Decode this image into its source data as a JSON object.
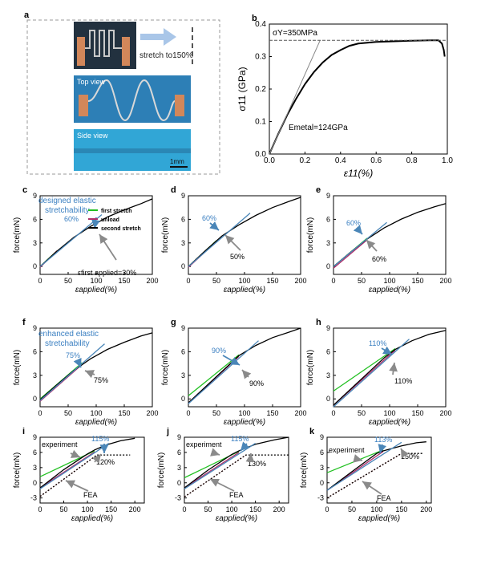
{
  "panel_a": {
    "label": "a",
    "stretch_text": "stretch to150%",
    "top_view": "Top view",
    "side_view": "Side view",
    "scale_bar": "1mm"
  },
  "chart_data": [
    {
      "id": "b",
      "panel": "b",
      "type": "line",
      "xlabel": "ε11(%)",
      "ylabel": "σ11 (GPa)",
      "xlim": [
        0,
        1.0
      ],
      "ylim": [
        0,
        0.4
      ],
      "xticks": [
        "0.0",
        "0.2",
        "0.4",
        "0.6",
        "0.8",
        "1.0"
      ],
      "yticks": [
        "0.0",
        "0.1",
        "0.2",
        "0.3",
        "0.4"
      ],
      "annotations": [
        "σY=350MPa",
        "Emetal=124GPa"
      ],
      "series": [
        {
          "color": "#000000",
          "width": 2,
          "x": [
            0,
            0.05,
            0.1,
            0.15,
            0.2,
            0.25,
            0.3,
            0.35,
            0.4,
            0.45,
            0.5,
            0.6,
            0.7,
            0.8,
            0.9,
            0.95,
            0.97,
            0.98,
            0.985
          ],
          "y": [
            0,
            0.062,
            0.12,
            0.17,
            0.215,
            0.252,
            0.282,
            0.305,
            0.32,
            0.333,
            0.34,
            0.345,
            0.347,
            0.349,
            0.35,
            0.35,
            0.34,
            0.32,
            0.3
          ]
        },
        {
          "color": "#888888",
          "width": 1,
          "x": [
            0,
            0.285
          ],
          "y": [
            0,
            0.35
          ]
        },
        {
          "color": "#555555",
          "width": 1,
          "dash": "4,2",
          "x": [
            0,
            0.99
          ],
          "y": [
            0.35,
            0.35
          ]
        }
      ]
    },
    {
      "id": "c",
      "panel": "c",
      "type": "line",
      "xlabel": "εapplied(%)",
      "ylabel": "force(mN)",
      "xlim": [
        0,
        200
      ],
      "ylim": [
        -1,
        9
      ],
      "xticks": [
        "0",
        "50",
        "100",
        "150",
        "200"
      ],
      "yticks": [
        "0",
        "3",
        "6",
        "9"
      ],
      "annotations": [
        "designed elastic",
        "stretchability",
        "60%",
        "εfirst applied=30%"
      ],
      "legend": [
        "first stretch",
        "unload",
        "second stretch"
      ],
      "series": [
        {
          "name": "first stretch",
          "color": "#22c022",
          "x": [
            0,
            30
          ],
          "y": [
            0,
            2.0
          ]
        },
        {
          "name": "unload",
          "color": "#b0306a",
          "x": [
            0,
            30
          ],
          "y": [
            -0.1,
            2.0
          ]
        },
        {
          "name": "second stretch",
          "color": "#000000",
          "x": [
            0,
            30,
            60,
            90,
            120,
            150,
            180,
            200
          ],
          "y": [
            0,
            1.95,
            3.7,
            5.1,
            6.3,
            7.2,
            8.0,
            8.6
          ]
        },
        {
          "color": "#4a86b8",
          "x": [
            0,
            110
          ],
          "y": [
            0,
            6.6
          ]
        }
      ]
    },
    {
      "id": "d",
      "panel": "d",
      "type": "line",
      "xlabel": "εapplied(%)",
      "ylabel": "force(mN)",
      "xlim": [
        0,
        200
      ],
      "ylim": [
        -1,
        9
      ],
      "xticks": [
        "0",
        "50",
        "100",
        "150",
        "200"
      ],
      "yticks": [
        "0",
        "3",
        "6",
        "9"
      ],
      "annotations": [
        "60%",
        "50%"
      ],
      "series": [
        {
          "name": "first stretch",
          "color": "#22c022",
          "x": [
            0,
            50
          ],
          "y": [
            0,
            3.3
          ]
        },
        {
          "name": "unload",
          "color": "#b0306a",
          "x": [
            0,
            50
          ],
          "y": [
            -0.1,
            3.2
          ]
        },
        {
          "name": "second stretch",
          "color": "#000000",
          "x": [
            0,
            30,
            60,
            90,
            120,
            150,
            180,
            200
          ],
          "y": [
            0,
            2.0,
            3.9,
            5.3,
            6.5,
            7.5,
            8.3,
            8.8
          ]
        },
        {
          "color": "#4a86b8",
          "x": [
            0,
            110
          ],
          "y": [
            0,
            6.8
          ]
        }
      ]
    },
    {
      "id": "e",
      "panel": "e",
      "type": "line",
      "xlabel": "εapplied(%)",
      "ylabel": "force(mN)",
      "xlim": [
        0,
        200
      ],
      "ylim": [
        -1,
        9
      ],
      "xticks": [
        "0",
        "50",
        "100",
        "150",
        "200"
      ],
      "yticks": [
        "0",
        "3",
        "6",
        "9"
      ],
      "annotations": [
        "60%",
        "60%"
      ],
      "series": [
        {
          "name": "first stretch",
          "color": "#22c022",
          "x": [
            0,
            60
          ],
          "y": [
            0,
            3.6
          ]
        },
        {
          "name": "unload",
          "color": "#b0306a",
          "x": [
            0,
            60
          ],
          "y": [
            -0.2,
            3.4
          ]
        },
        {
          "name": "second stretch",
          "color": "#000000",
          "x": [
            0,
            30,
            60,
            90,
            120,
            150,
            180,
            200
          ],
          "y": [
            0,
            1.8,
            3.5,
            4.9,
            6.0,
            6.9,
            7.6,
            8.0
          ]
        },
        {
          "color": "#4a86b8",
          "x": [
            0,
            95
          ],
          "y": [
            0,
            5.6
          ]
        }
      ]
    },
    {
      "id": "f",
      "panel": "f",
      "type": "line",
      "xlabel": "εapplied(%)",
      "ylabel": "force(mN)",
      "xlim": [
        0,
        200
      ],
      "ylim": [
        -1,
        9
      ],
      "xticks": [
        "0",
        "50",
        "100",
        "150",
        "200"
      ],
      "yticks": [
        "0",
        "3",
        "6",
        "9"
      ],
      "annotations": [
        "enhanced elastic",
        "stretchability",
        "75%",
        "75%"
      ],
      "series": [
        {
          "name": "first stretch",
          "color": "#22c022",
          "x": [
            0,
            75
          ],
          "y": [
            0,
            4.6
          ]
        },
        {
          "name": "unload",
          "color": "#b0306a",
          "x": [
            0,
            75
          ],
          "y": [
            -0.3,
            4.4
          ]
        },
        {
          "name": "second stretch",
          "color": "#000000",
          "x": [
            0,
            30,
            60,
            90,
            120,
            150,
            180,
            200
          ],
          "y": [
            -0.1,
            1.8,
            3.6,
            5.1,
            6.3,
            7.2,
            8.0,
            8.4
          ]
        },
        {
          "color": "#4a86b8",
          "x": [
            0,
            115
          ],
          "y": [
            -0.2,
            7.0
          ]
        }
      ]
    },
    {
      "id": "g",
      "panel": "g",
      "type": "line",
      "xlabel": "εapplied(%)",
      "ylabel": "force(mN)",
      "xlim": [
        0,
        200
      ],
      "ylim": [
        -1,
        9
      ],
      "xticks": [
        "0",
        "50",
        "100",
        "150",
        "200"
      ],
      "yticks": [
        "0",
        "3",
        "6",
        "9"
      ],
      "annotations": [
        "90%",
        "90%"
      ],
      "series": [
        {
          "name": "first stretch",
          "color": "#22c022",
          "x": [
            0,
            90
          ],
          "y": [
            0.4,
            5.6
          ]
        },
        {
          "name": "unload",
          "color": "#b0306a",
          "x": [
            0,
            90
          ],
          "y": [
            -0.5,
            5.4
          ]
        },
        {
          "name": "second stretch",
          "color": "#000000",
          "x": [
            0,
            30,
            60,
            90,
            120,
            150,
            180,
            200
          ],
          "y": [
            -0.5,
            1.5,
            3.5,
            5.5,
            6.8,
            7.8,
            8.5,
            9.0
          ]
        },
        {
          "color": "#4a86b8",
          "x": [
            0,
            125
          ],
          "y": [
            -0.6,
            7.4
          ]
        }
      ]
    },
    {
      "id": "h",
      "panel": "h",
      "type": "line",
      "xlabel": "εapplied(%)",
      "ylabel": "force(mN)",
      "xlim": [
        0,
        200
      ],
      "ylim": [
        -1,
        9
      ],
      "xticks": [
        "0",
        "50",
        "100",
        "150",
        "200"
      ],
      "yticks": [
        "0",
        "3",
        "6",
        "9"
      ],
      "annotations": [
        "110%",
        "110%"
      ],
      "series": [
        {
          "name": "first stretch",
          "color": "#22c022",
          "x": [
            0,
            110
          ],
          "y": [
            1.0,
            6.4
          ]
        },
        {
          "name": "unload",
          "color": "#b0306a",
          "x": [
            0,
            110
          ],
          "y": [
            -0.8,
            6.2
          ]
        },
        {
          "name": "second stretch",
          "color": "#000000",
          "x": [
            0,
            30,
            60,
            90,
            110,
            140,
            170,
            200
          ],
          "y": [
            -0.8,
            1.2,
            3.2,
            5.2,
            6.3,
            7.4,
            8.2,
            8.7
          ]
        },
        {
          "color": "#4a86b8",
          "x": [
            0,
            135
          ],
          "y": [
            -1.0,
            7.6
          ]
        }
      ]
    },
    {
      "id": "i",
      "panel": "i",
      "type": "line",
      "xlabel": "εapplied(%)",
      "ylabel": "force(mN)",
      "xlim": [
        0,
        220
      ],
      "ylim": [
        -4,
        9
      ],
      "xticks": [
        "0",
        "50",
        "100",
        "150",
        "200"
      ],
      "yticks": [
        "-3",
        "0",
        "3",
        "6",
        "9"
      ],
      "annotations": [
        "experiment",
        "115%",
        "120%",
        "FEA"
      ],
      "series": [
        {
          "name": "first stretch",
          "color": "#22c022",
          "x": [
            0,
            115
          ],
          "y": [
            1.2,
            6.3
          ]
        },
        {
          "name": "unload",
          "color": "#b0306a",
          "x": [
            0,
            115
          ],
          "y": [
            -1.0,
            6.1
          ]
        },
        {
          "name": "second stretch",
          "color": "#000000",
          "x": [
            0,
            50,
            100,
            115,
            140,
            170,
            200
          ],
          "y": [
            -1.0,
            2.6,
            5.7,
            6.5,
            7.5,
            8.3,
            8.8
          ]
        },
        {
          "color": "#4a86b8",
          "x": [
            0,
            145
          ],
          "y": [
            -1.2,
            7.8
          ]
        },
        {
          "color": "#c03030",
          "dash": "2,2",
          "x": [
            0,
            120
          ],
          "y": [
            -2.7,
            5.5
          ]
        },
        {
          "color": "#000000",
          "dash": "2,2",
          "x": [
            0,
            120,
            190
          ],
          "y": [
            -2.7,
            5.5,
            5.5
          ]
        }
      ]
    },
    {
      "id": "j",
      "panel": "j",
      "type": "line",
      "xlabel": "εapplied(%)",
      "ylabel": "force(mN)",
      "xlim": [
        0,
        220
      ],
      "ylim": [
        -4,
        9
      ],
      "xticks": [
        "0",
        "50",
        "100",
        "150",
        "200"
      ],
      "yticks": [
        "-3",
        "0",
        "3",
        "6",
        "9"
      ],
      "annotations": [
        "experiment",
        "115%",
        "130%",
        "FEA"
      ],
      "series": [
        {
          "name": "first stretch",
          "color": "#22c022",
          "x": [
            0,
            115
          ],
          "y": [
            1.0,
            6.2
          ]
        },
        {
          "name": "unload",
          "color": "#b0306a",
          "x": [
            0,
            115
          ],
          "y": [
            -1.0,
            6.0
          ]
        },
        {
          "name": "second stretch",
          "color": "#000000",
          "x": [
            0,
            50,
            100,
            115,
            150,
            190,
            220
          ],
          "y": [
            -1.0,
            2.5,
            5.6,
            6.3,
            7.6,
            8.5,
            9.0
          ]
        },
        {
          "color": "#4a86b8",
          "x": [
            0,
            150
          ],
          "y": [
            -1.2,
            7.8
          ]
        },
        {
          "color": "#c03030",
          "dash": "2,2",
          "x": [
            0,
            130
          ],
          "y": [
            -2.8,
            5.5
          ]
        },
        {
          "color": "#000000",
          "dash": "2,2",
          "x": [
            0,
            130,
            220
          ],
          "y": [
            -2.8,
            5.5,
            5.5
          ]
        }
      ]
    },
    {
      "id": "k",
      "panel": "k",
      "type": "line",
      "xlabel": "εapplied(%)",
      "ylabel": "force(mN)",
      "xlim": [
        0,
        210
      ],
      "ylim": [
        -4,
        9
      ],
      "xticks": [
        "0",
        "50",
        "100",
        "150",
        "200"
      ],
      "yticks": [
        "-3",
        "0",
        "3",
        "6",
        "9"
      ],
      "annotations": [
        "experiment",
        "113%",
        "150%",
        "FEA"
      ],
      "series": [
        {
          "name": "first stretch",
          "color": "#22c022",
          "x": [
            0,
            113
          ],
          "y": [
            2.0,
            6.5
          ]
        },
        {
          "name": "unload",
          "color": "#b0306a",
          "x": [
            0,
            113
          ],
          "y": [
            -1.5,
            6.2
          ]
        },
        {
          "name": "second stretch",
          "color": "#000000",
          "x": [
            0,
            50,
            100,
            113,
            150,
            180,
            200
          ],
          "y": [
            -1.5,
            2.2,
            5.8,
            6.3,
            7.3,
            7.9,
            8.1
          ]
        },
        {
          "color": "#4a86b8",
          "x": [
            0,
            150
          ],
          "y": [
            -1.5,
            8.0
          ]
        },
        {
          "color": "#c03030",
          "dash": "2,2",
          "x": [
            0,
            150
          ],
          "y": [
            -3.0,
            5.8
          ]
        },
        {
          "color": "#000000",
          "dash": "2,2",
          "x": [
            0,
            150,
            195
          ],
          "y": [
            -3.0,
            5.8,
            5.8
          ]
        }
      ]
    }
  ]
}
